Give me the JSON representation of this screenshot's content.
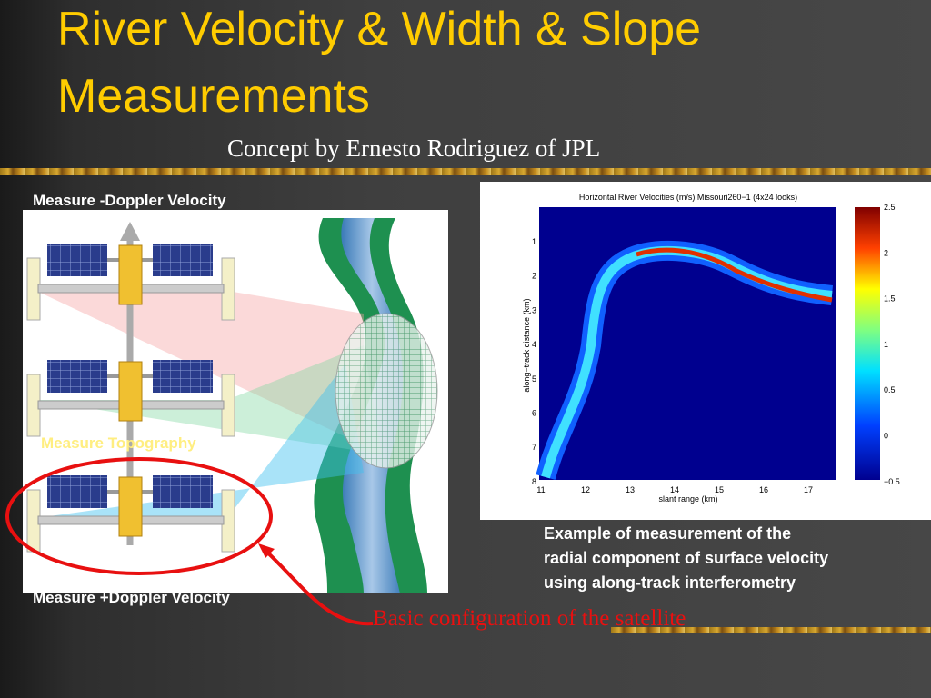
{
  "slide": {
    "title_lines": [
      "River Velocity & Width & Slope",
      "Measurements"
    ],
    "subtitle": "Concept by Ernesto Rodriguez of JPL",
    "diagram": {
      "label_top": "Measure -Doppler Velocity",
      "label_middle": "Measure Topography",
      "label_bottom": "Measure +Doppler Velocity",
      "callout": "Basic configuration of the satellite"
    },
    "figure": {
      "title": "Horizontal River Velocities (m/s) Missouri260−1 (4x24 looks)",
      "xlabel": "slant range (km)",
      "ylabel": "along−track distance (km)",
      "xticks": [
        "11",
        "12",
        "13",
        "14",
        "15",
        "16",
        "17"
      ],
      "yticks": [
        "1",
        "2",
        "3",
        "4",
        "5",
        "6",
        "7",
        "8"
      ],
      "colorbar_ticks": [
        "2.5",
        "2",
        "1.5",
        "1",
        "0.5",
        "0",
        "−0.5"
      ]
    },
    "caption_lines": [
      "Example of measurement of the",
      "radial component of surface velocity",
      "using along-track interferometry"
    ]
  }
}
